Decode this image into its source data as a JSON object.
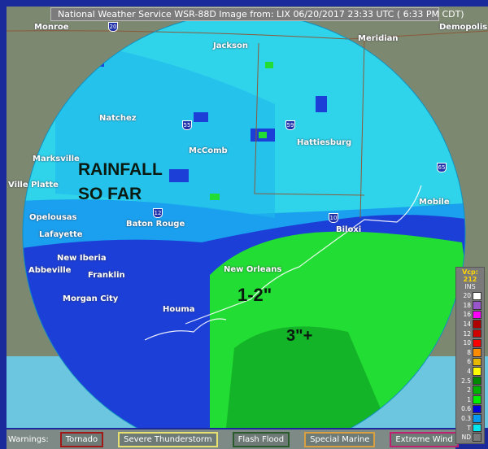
{
  "header": {
    "title": "National Weather Service WSR-88D Image from: LIX 06/20/2017 23:33 UTC ( 6:33 PM CDT)"
  },
  "cities": [
    "Monroe",
    "Jackson",
    "Meridian",
    "Demopolis",
    "Natchez",
    "Marksville",
    "McComb",
    "Hattiesburg",
    "Ville Platte",
    "Opelousas",
    "Baton Rouge",
    "Lafayette",
    "Mobile",
    "New Iberia",
    "Biloxi",
    "Abbeville",
    "Franklin",
    "New Orleans",
    "Morgan City",
    "Houma"
  ],
  "interstates": [
    "20",
    "55",
    "59",
    "12",
    "10",
    "65"
  ],
  "annotations": {
    "rainfall": "RAINFALL",
    "so_far": "SO FAR",
    "range1": "1-2\"",
    "range2": "3\"+"
  },
  "legend": {
    "vcp": "Vcp: 212",
    "units": "INS",
    "items": [
      {
        "label": "20",
        "color": "#ffffff"
      },
      {
        "label": "18",
        "color": "#9955cc"
      },
      {
        "label": "16",
        "color": "#ff00ff"
      },
      {
        "label": "14",
        "color": "#b00000"
      },
      {
        "label": "12",
        "color": "#d00000"
      },
      {
        "label": "10",
        "color": "#ff0000"
      },
      {
        "label": "8",
        "color": "#ff8c00"
      },
      {
        "label": "6",
        "color": "#e8b800"
      },
      {
        "label": "4",
        "color": "#ffff00"
      },
      {
        "label": "2.5",
        "color": "#008800"
      },
      {
        "label": "2",
        "color": "#00b000"
      },
      {
        "label": "1",
        "color": "#00ee00"
      },
      {
        "label": "0.6",
        "color": "#0000dd"
      },
      {
        "label": "0.3",
        "color": "#0099ee"
      },
      {
        "label": "T",
        "color": "#00e5ee"
      },
      {
        "label": "ND",
        "color": "#7a7a7a"
      }
    ]
  },
  "warnings": {
    "label": "Warnings:",
    "items": [
      {
        "label": "Tornado",
        "color": "#a01818"
      },
      {
        "label": "Severe Thunderstorm",
        "color": "#e8e070"
      },
      {
        "label": "Flash Flood",
        "color": "#2a5a2a"
      },
      {
        "label": "Special Marine",
        "color": "#d8a040"
      },
      {
        "label": "Extreme Wind",
        "color": "#c02070"
      }
    ]
  }
}
